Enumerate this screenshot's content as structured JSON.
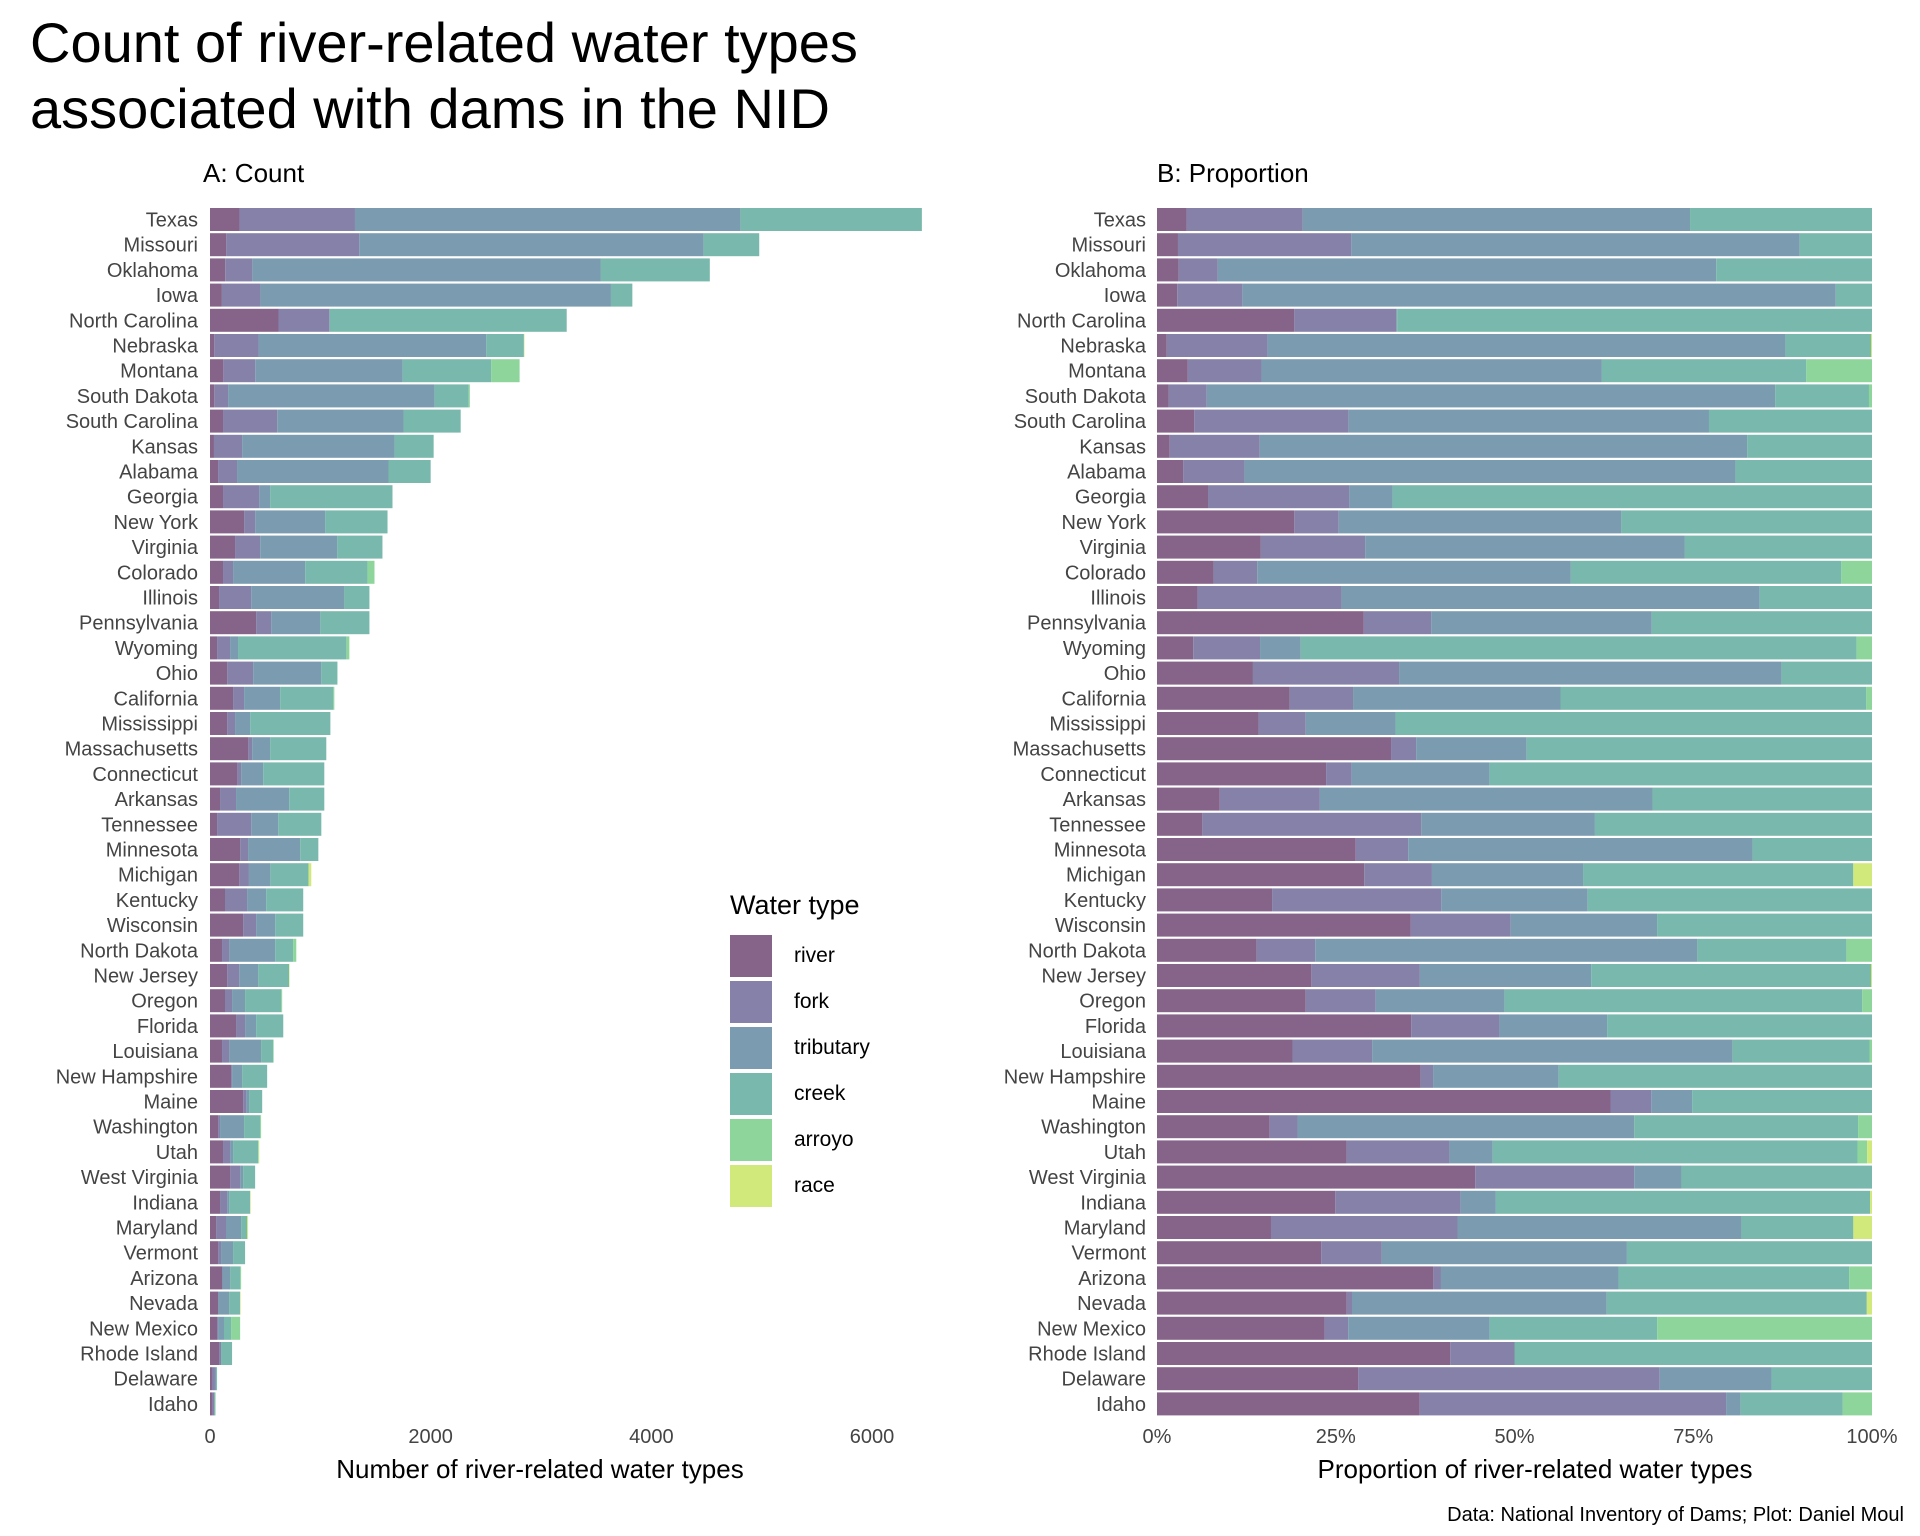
{
  "title_line1": "Count of river-related water types",
  "title_line2": "associated with dams in the NID",
  "caption": "Data: National Inventory of Dams; Plot: Daniel Moul",
  "legend": {
    "title": "Water type",
    "items": [
      {
        "label": "river",
        "color": "#866489"
      },
      {
        "label": "fork",
        "color": "#8681a8"
      },
      {
        "label": "tributary",
        "color": "#7b9cb0"
      },
      {
        "label": "creek",
        "color": "#79b8ac"
      },
      {
        "label": "arroyo",
        "color": "#8dd59a"
      },
      {
        "label": "race",
        "color": "#d1e97b"
      }
    ]
  },
  "chart_data": [
    {
      "type": "bar",
      "orientation": "horizontal",
      "stacked": true,
      "title": "A: Count",
      "xlabel": "Number of river-related water types",
      "ylabel": "",
      "xlim": [
        0,
        6450
      ],
      "xticks": [
        0,
        2000,
        4000,
        6000
      ],
      "xtick_labels": [
        "0",
        "2000",
        "4000",
        "6000"
      ],
      "grid": false,
      "legend_position": "right",
      "series_names": [
        "river",
        "fork",
        "tributary",
        "creek",
        "arroyo",
        "race"
      ],
      "categories": [
        "Texas",
        "Missouri",
        "Oklahoma",
        "Iowa",
        "North Carolina",
        "Nebraska",
        "Montana",
        "South Dakota",
        "South Carolina",
        "Kansas",
        "Alabama",
        "Georgia",
        "New York",
        "Virginia",
        "Colorado",
        "Illinois",
        "Pennsylvania",
        "Wyoming",
        "Ohio",
        "California",
        "Mississippi",
        "Massachusetts",
        "Connecticut",
        "Arkansas",
        "Tennessee",
        "Minnesota",
        "Michigan",
        "Kentucky",
        "Wisconsin",
        "North Dakota",
        "New Jersey",
        "Oregon",
        "Florida",
        "Louisiana",
        "New Hampshire",
        "Maine",
        "Washington",
        "Utah",
        "West Virginia",
        "Indiana",
        "Maryland",
        "Vermont",
        "Arizona",
        "Nevada",
        "New Mexico",
        "Rhode Island",
        "Delaware",
        "Idaho"
      ],
      "values": [
        [
          267,
          1047,
          3496,
          1642,
          0,
          0
        ],
        [
          146,
          1207,
          3121,
          504,
          0,
          0
        ],
        [
          138,
          246,
          3159,
          987,
          0,
          0
        ],
        [
          108,
          349,
          3177,
          194,
          0,
          0
        ],
        [
          621,
          461,
          4,
          2147,
          0,
          0
        ],
        [
          39,
          401,
          2064,
          341,
          0,
          4
        ],
        [
          121,
          289,
          1336,
          802,
          258,
          0
        ],
        [
          39,
          125,
          1872,
          309,
          10,
          0
        ],
        [
          118,
          491,
          1145,
          518,
          0,
          0
        ],
        [
          36,
          255,
          1382,
          354,
          0,
          0
        ],
        [
          73,
          172,
          1373,
          382,
          0,
          0
        ],
        [
          118,
          327,
          100,
          1109,
          0,
          0
        ],
        [
          309,
          100,
          636,
          564,
          0,
          0
        ],
        [
          227,
          228,
          699,
          409,
          0,
          0
        ],
        [
          118,
          91,
          654,
          564,
          64,
          0
        ],
        [
          82,
          291,
          845,
          227,
          0,
          0
        ],
        [
          418,
          136,
          446,
          445,
          0,
          0
        ],
        [
          64,
          118,
          72,
          982,
          27,
          0
        ],
        [
          155,
          236,
          618,
          146,
          0,
          0
        ],
        [
          209,
          100,
          327,
          482,
          9,
          0
        ],
        [
          155,
          72,
          137,
          727,
          0,
          0
        ],
        [
          345,
          37,
          163,
          509,
          0,
          0
        ],
        [
          245,
          37,
          200,
          554,
          0,
          0
        ],
        [
          91,
          145,
          482,
          318,
          0,
          0
        ],
        [
          64,
          309,
          245,
          391,
          0,
          0
        ],
        [
          273,
          72,
          473,
          164,
          0,
          0
        ],
        [
          266,
          87,
          194,
          347,
          0,
          24
        ],
        [
          136,
          200,
          173,
          336,
          0,
          0
        ],
        [
          300,
          118,
          173,
          254,
          0,
          0
        ],
        [
          109,
          64,
          418,
          163,
          28,
          0
        ],
        [
          155,
          109,
          172,
          281,
          0,
          1
        ],
        [
          136,
          64,
          118,
          327,
          9,
          0
        ],
        [
          236,
          82,
          100,
          246,
          0,
          0
        ],
        [
          109,
          64,
          290,
          110,
          2,
          0
        ],
        [
          191,
          9,
          91,
          227,
          0,
          0
        ],
        [
          300,
          27,
          27,
          119,
          0,
          0
        ],
        [
          73,
          18,
          218,
          145,
          9,
          0
        ],
        [
          118,
          64,
          27,
          227,
          6,
          3
        ],
        [
          182,
          91,
          27,
          109,
          0,
          0
        ],
        [
          91,
          64,
          18,
          191,
          0,
          1
        ],
        [
          55,
          90,
          137,
          54,
          0,
          9
        ],
        [
          73,
          27,
          109,
          109,
          0,
          0
        ],
        [
          109,
          3,
          70,
          91,
          9,
          0
        ],
        [
          73,
          2,
          98,
          100,
          0,
          2
        ],
        [
          64,
          9,
          54,
          64,
          82,
          0
        ],
        [
          82,
          18,
          0,
          100,
          0,
          0
        ],
        [
          18,
          27,
          10,
          9,
          0,
          0
        ],
        [
          18,
          21,
          1,
          7,
          2,
          0
        ]
      ]
    },
    {
      "type": "bar",
      "orientation": "horizontal",
      "stacked": true,
      "normalized": true,
      "title": "B: Proportion",
      "xlabel": "Proportion of river-related water types",
      "ylabel": "",
      "xlim": [
        0,
        1
      ],
      "xticks": [
        0,
        0.25,
        0.5,
        0.75,
        1
      ],
      "xtick_labels": [
        "0%",
        "25%",
        "50%",
        "75%",
        "100%"
      ],
      "grid": false,
      "note": "Same categories and series as panel A, each bar normalized to 100%"
    }
  ]
}
